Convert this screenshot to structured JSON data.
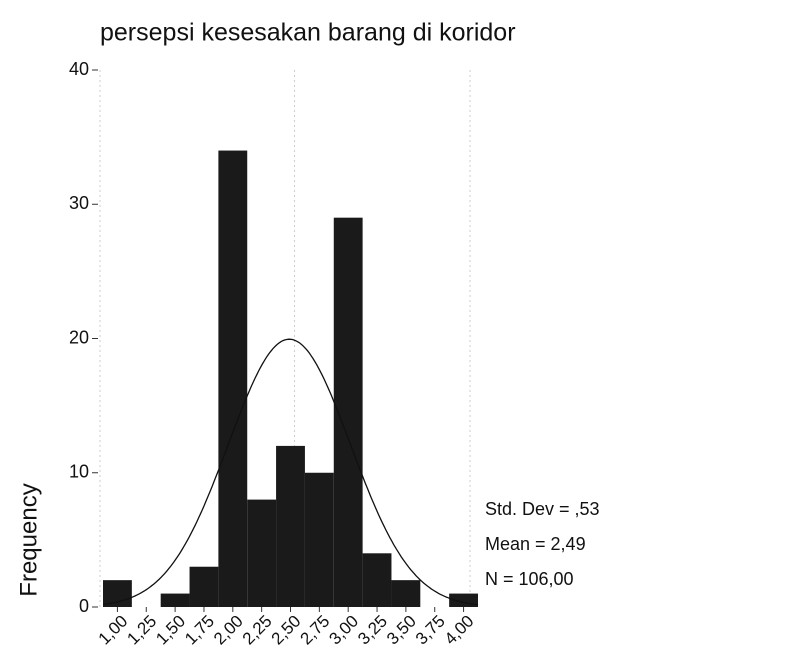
{
  "chart_data": {
    "type": "histogram",
    "title": "persepsi kesesakan barang di koridor",
    "ylabel": "Frequency",
    "bins": [
      0.875,
      1.125,
      1.375,
      1.625,
      1.875,
      2.125,
      2.375,
      2.625,
      2.875,
      3.125,
      3.375,
      3.625,
      3.875,
      4.125
    ],
    "values": [
      2,
      0,
      1,
      3,
      34,
      8,
      12,
      10,
      29,
      4,
      2,
      0,
      1
    ],
    "color": "#1a1a1a",
    "xlim": [
      0.875,
      4.125
    ],
    "xticks": [
      {
        "value": 1,
        "label": "1,00"
      },
      {
        "value": 1.25,
        "label": "1,25"
      },
      {
        "value": 1.5,
        "label": "1,50"
      },
      {
        "value": 1.75,
        "label": "1,75"
      },
      {
        "value": 2,
        "label": "2,00"
      },
      {
        "value": 2.25,
        "label": "2,25"
      },
      {
        "value": 2.5,
        "label": "2,50"
      },
      {
        "value": 2.75,
        "label": "2,75"
      },
      {
        "value": 3,
        "label": "3,00"
      },
      {
        "value": 3.25,
        "label": "3,25"
      },
      {
        "value": 3.5,
        "label": "3,50"
      },
      {
        "value": 3.75,
        "label": "3,75"
      },
      {
        "value": 4,
        "label": "4,00"
      }
    ],
    "ylim": [
      0,
      40
    ],
    "yticks": [
      0,
      10,
      20,
      30,
      40
    ],
    "normal_curve": {
      "mean": 2.49,
      "std_dev": 0.53,
      "n": 106
    },
    "annotations": [
      "Std. Dev = ,53",
      "Mean = 2,49",
      "N = 106,00"
    ]
  }
}
